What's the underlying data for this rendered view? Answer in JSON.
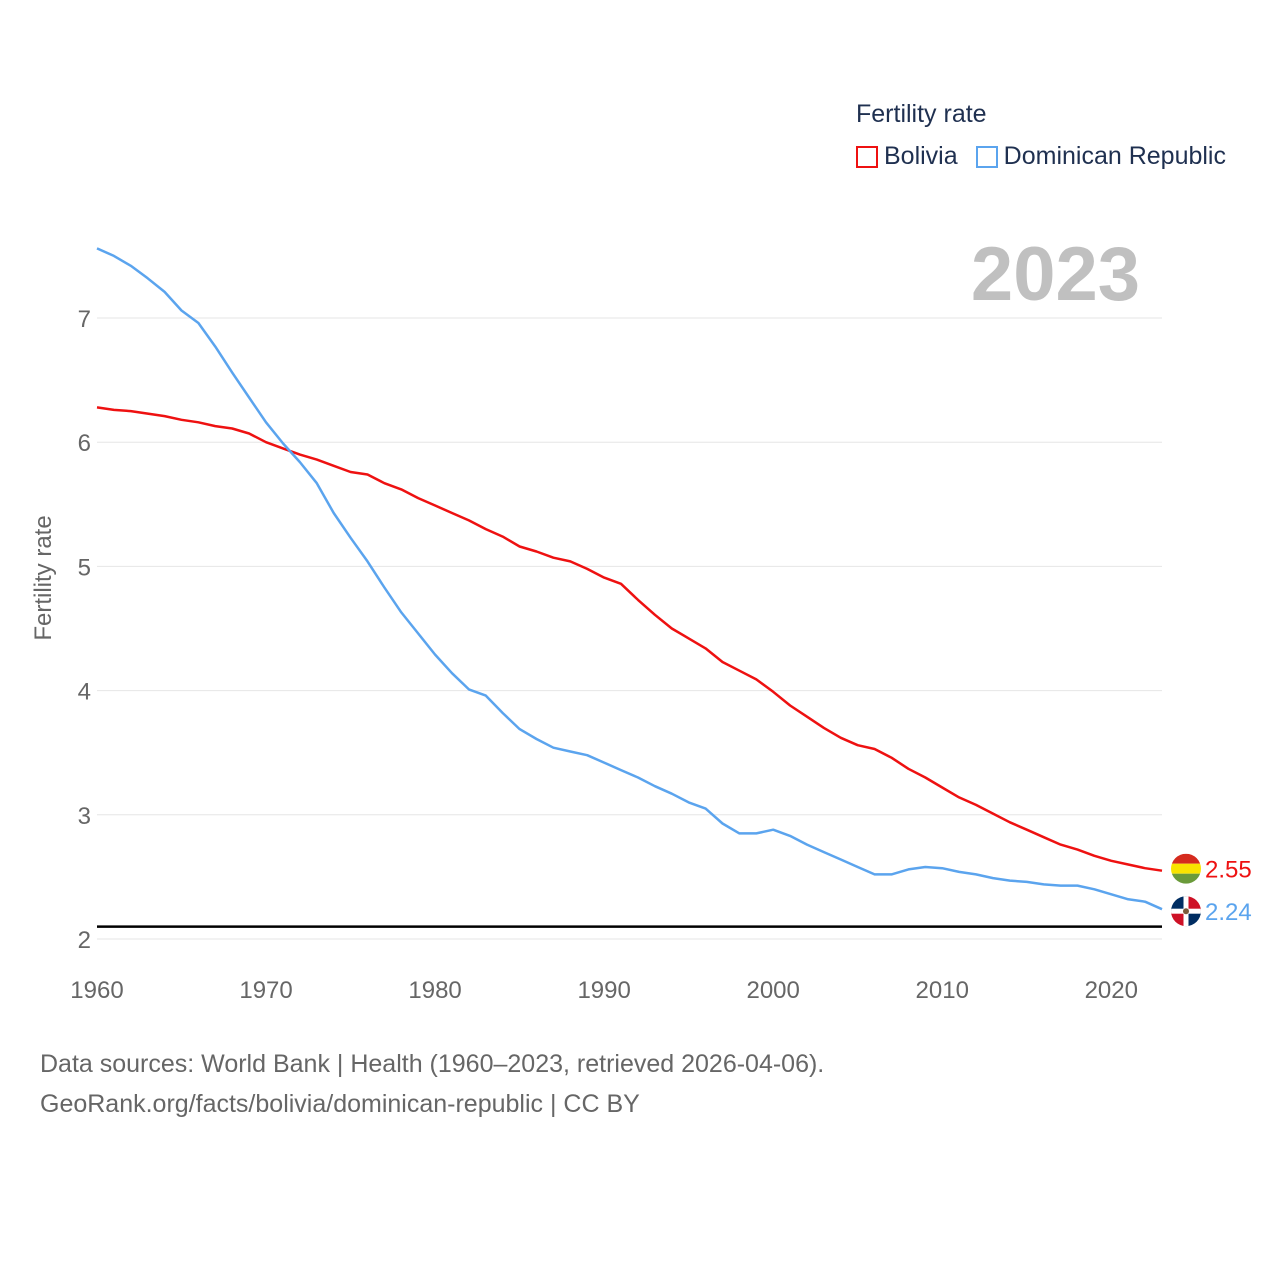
{
  "chart_data": {
    "type": "line",
    "legend_title": "Fertility rate",
    "ylabel": "Fertility rate",
    "xlabel": "",
    "year_label": "2023",
    "xlim": [
      1960,
      2023
    ],
    "ylim": [
      1.9,
      7.8
    ],
    "x_ticks": [
      "1960",
      "1970",
      "1980",
      "1990",
      "2000",
      "2010",
      "2020"
    ],
    "y_ticks": [
      "2",
      "3",
      "4",
      "5",
      "6",
      "7"
    ],
    "grid": true,
    "legend_position": "top-right",
    "reference_line": 2.1,
    "x": [
      1960,
      1961,
      1962,
      1963,
      1964,
      1965,
      1966,
      1967,
      1968,
      1969,
      1970,
      1971,
      1972,
      1973,
      1974,
      1975,
      1976,
      1977,
      1978,
      1979,
      1980,
      1981,
      1982,
      1983,
      1984,
      1985,
      1986,
      1987,
      1988,
      1989,
      1990,
      1991,
      1992,
      1993,
      1994,
      1995,
      1996,
      1997,
      1998,
      1999,
      2000,
      2001,
      2002,
      2003,
      2004,
      2005,
      2006,
      2007,
      2008,
      2009,
      2010,
      2011,
      2012,
      2013,
      2014,
      2015,
      2016,
      2017,
      2018,
      2019,
      2020,
      2021,
      2022,
      2023
    ],
    "series": [
      {
        "name": "Bolivia",
        "color": "#ee1111",
        "end_label": "2.55",
        "values": [
          6.28,
          6.26,
          6.25,
          6.23,
          6.21,
          6.18,
          6.16,
          6.13,
          6.11,
          6.07,
          6.0,
          5.95,
          5.9,
          5.86,
          5.81,
          5.76,
          5.74,
          5.67,
          5.62,
          5.55,
          5.49,
          5.43,
          5.37,
          5.3,
          5.24,
          5.16,
          5.12,
          5.07,
          5.04,
          4.98,
          4.91,
          4.86,
          4.73,
          4.61,
          4.5,
          4.42,
          4.34,
          4.23,
          4.16,
          4.09,
          3.99,
          3.88,
          3.79,
          3.7,
          3.62,
          3.56,
          3.53,
          3.46,
          3.37,
          3.3,
          3.22,
          3.14,
          3.08,
          3.01,
          2.94,
          2.88,
          2.82,
          2.76,
          2.72,
          2.67,
          2.63,
          2.6,
          2.57,
          2.55
        ]
      },
      {
        "name": "Dominican Republic",
        "color": "#5ba4ee",
        "end_label": "2.24",
        "values": [
          7.56,
          7.5,
          7.42,
          7.32,
          7.21,
          7.06,
          6.96,
          6.77,
          6.56,
          6.36,
          6.16,
          5.99,
          5.84,
          5.67,
          5.43,
          5.23,
          5.04,
          4.83,
          4.63,
          4.46,
          4.29,
          4.14,
          4.01,
          3.96,
          3.82,
          3.69,
          3.61,
          3.54,
          3.51,
          3.48,
          3.42,
          3.36,
          3.3,
          3.23,
          3.17,
          3.1,
          3.05,
          2.93,
          2.85,
          2.85,
          2.88,
          2.83,
          2.76,
          2.7,
          2.64,
          2.58,
          2.52,
          2.52,
          2.56,
          2.58,
          2.57,
          2.54,
          2.52,
          2.49,
          2.47,
          2.46,
          2.44,
          2.43,
          2.43,
          2.4,
          2.36,
          2.32,
          2.3,
          2.24
        ]
      }
    ]
  },
  "footer": {
    "line1": "Data sources: World Bank | Health (1960–2023, retrieved 2026-04-06).",
    "line2": "GeoRank.org/facts/bolivia/dominican-republic | CC BY"
  }
}
